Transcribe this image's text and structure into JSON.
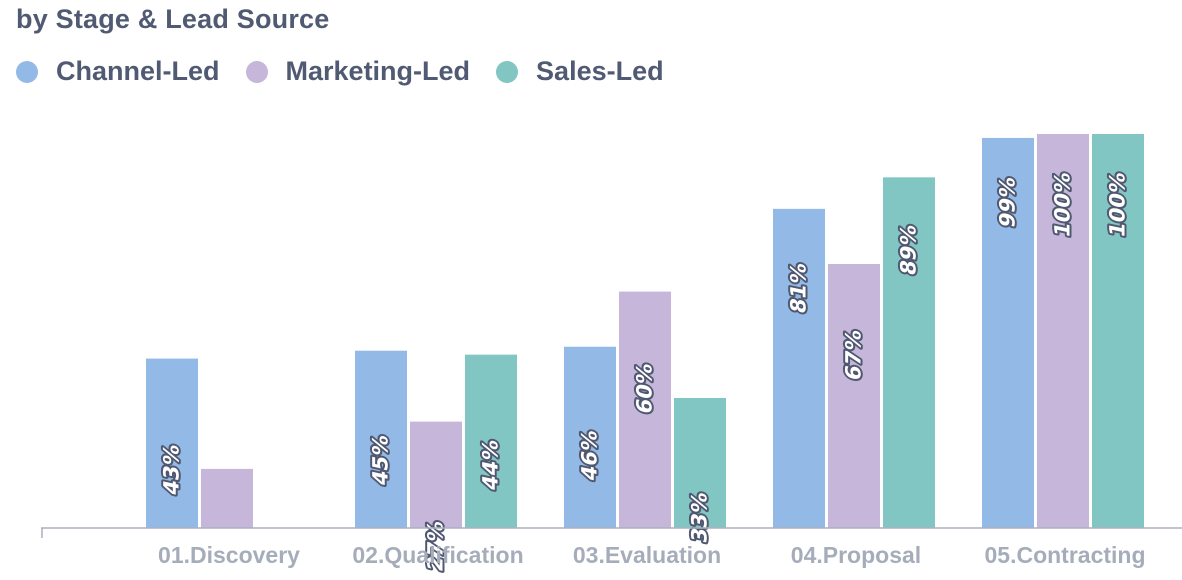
{
  "header": {
    "subtitle": "by Stage & Lead Source"
  },
  "legend": [
    {
      "label": "Channel-Led",
      "color": "#93b9e6"
    },
    {
      "label": "Marketing-Led",
      "color": "#c5b6da"
    },
    {
      "label": "Sales-Led",
      "color": "#81c6c3"
    }
  ],
  "chart_data": {
    "type": "bar",
    "subtitle": "by Stage & Lead Source",
    "categories": [
      "01.Discovery",
      "02.Qualification",
      "03.Evaluation",
      "04.Proposal",
      "05.Contracting"
    ],
    "series": [
      {
        "name": "Channel-Led",
        "color": "#93b9e6",
        "values": [
          43,
          45,
          46,
          81,
          99
        ],
        "labels": [
          "43%",
          "45%",
          "46%",
          "81%",
          "99%"
        ]
      },
      {
        "name": "Marketing-Led",
        "color": "#c5b6da",
        "values": [
          15,
          27,
          60,
          67,
          100
        ],
        "labels": [
          "",
          "27%",
          "60%",
          "67%",
          "100%"
        ]
      },
      {
        "name": "Sales-Led",
        "color": "#81c6c3",
        "values": [
          null,
          44,
          33,
          89,
          100
        ],
        "labels": [
          "",
          "44%",
          "33%",
          "89%",
          "100%"
        ]
      }
    ],
    "ylim": [
      0,
      100
    ],
    "grid": false,
    "legend_position": "top-left",
    "data_labels": "rotated inside bar top"
  }
}
